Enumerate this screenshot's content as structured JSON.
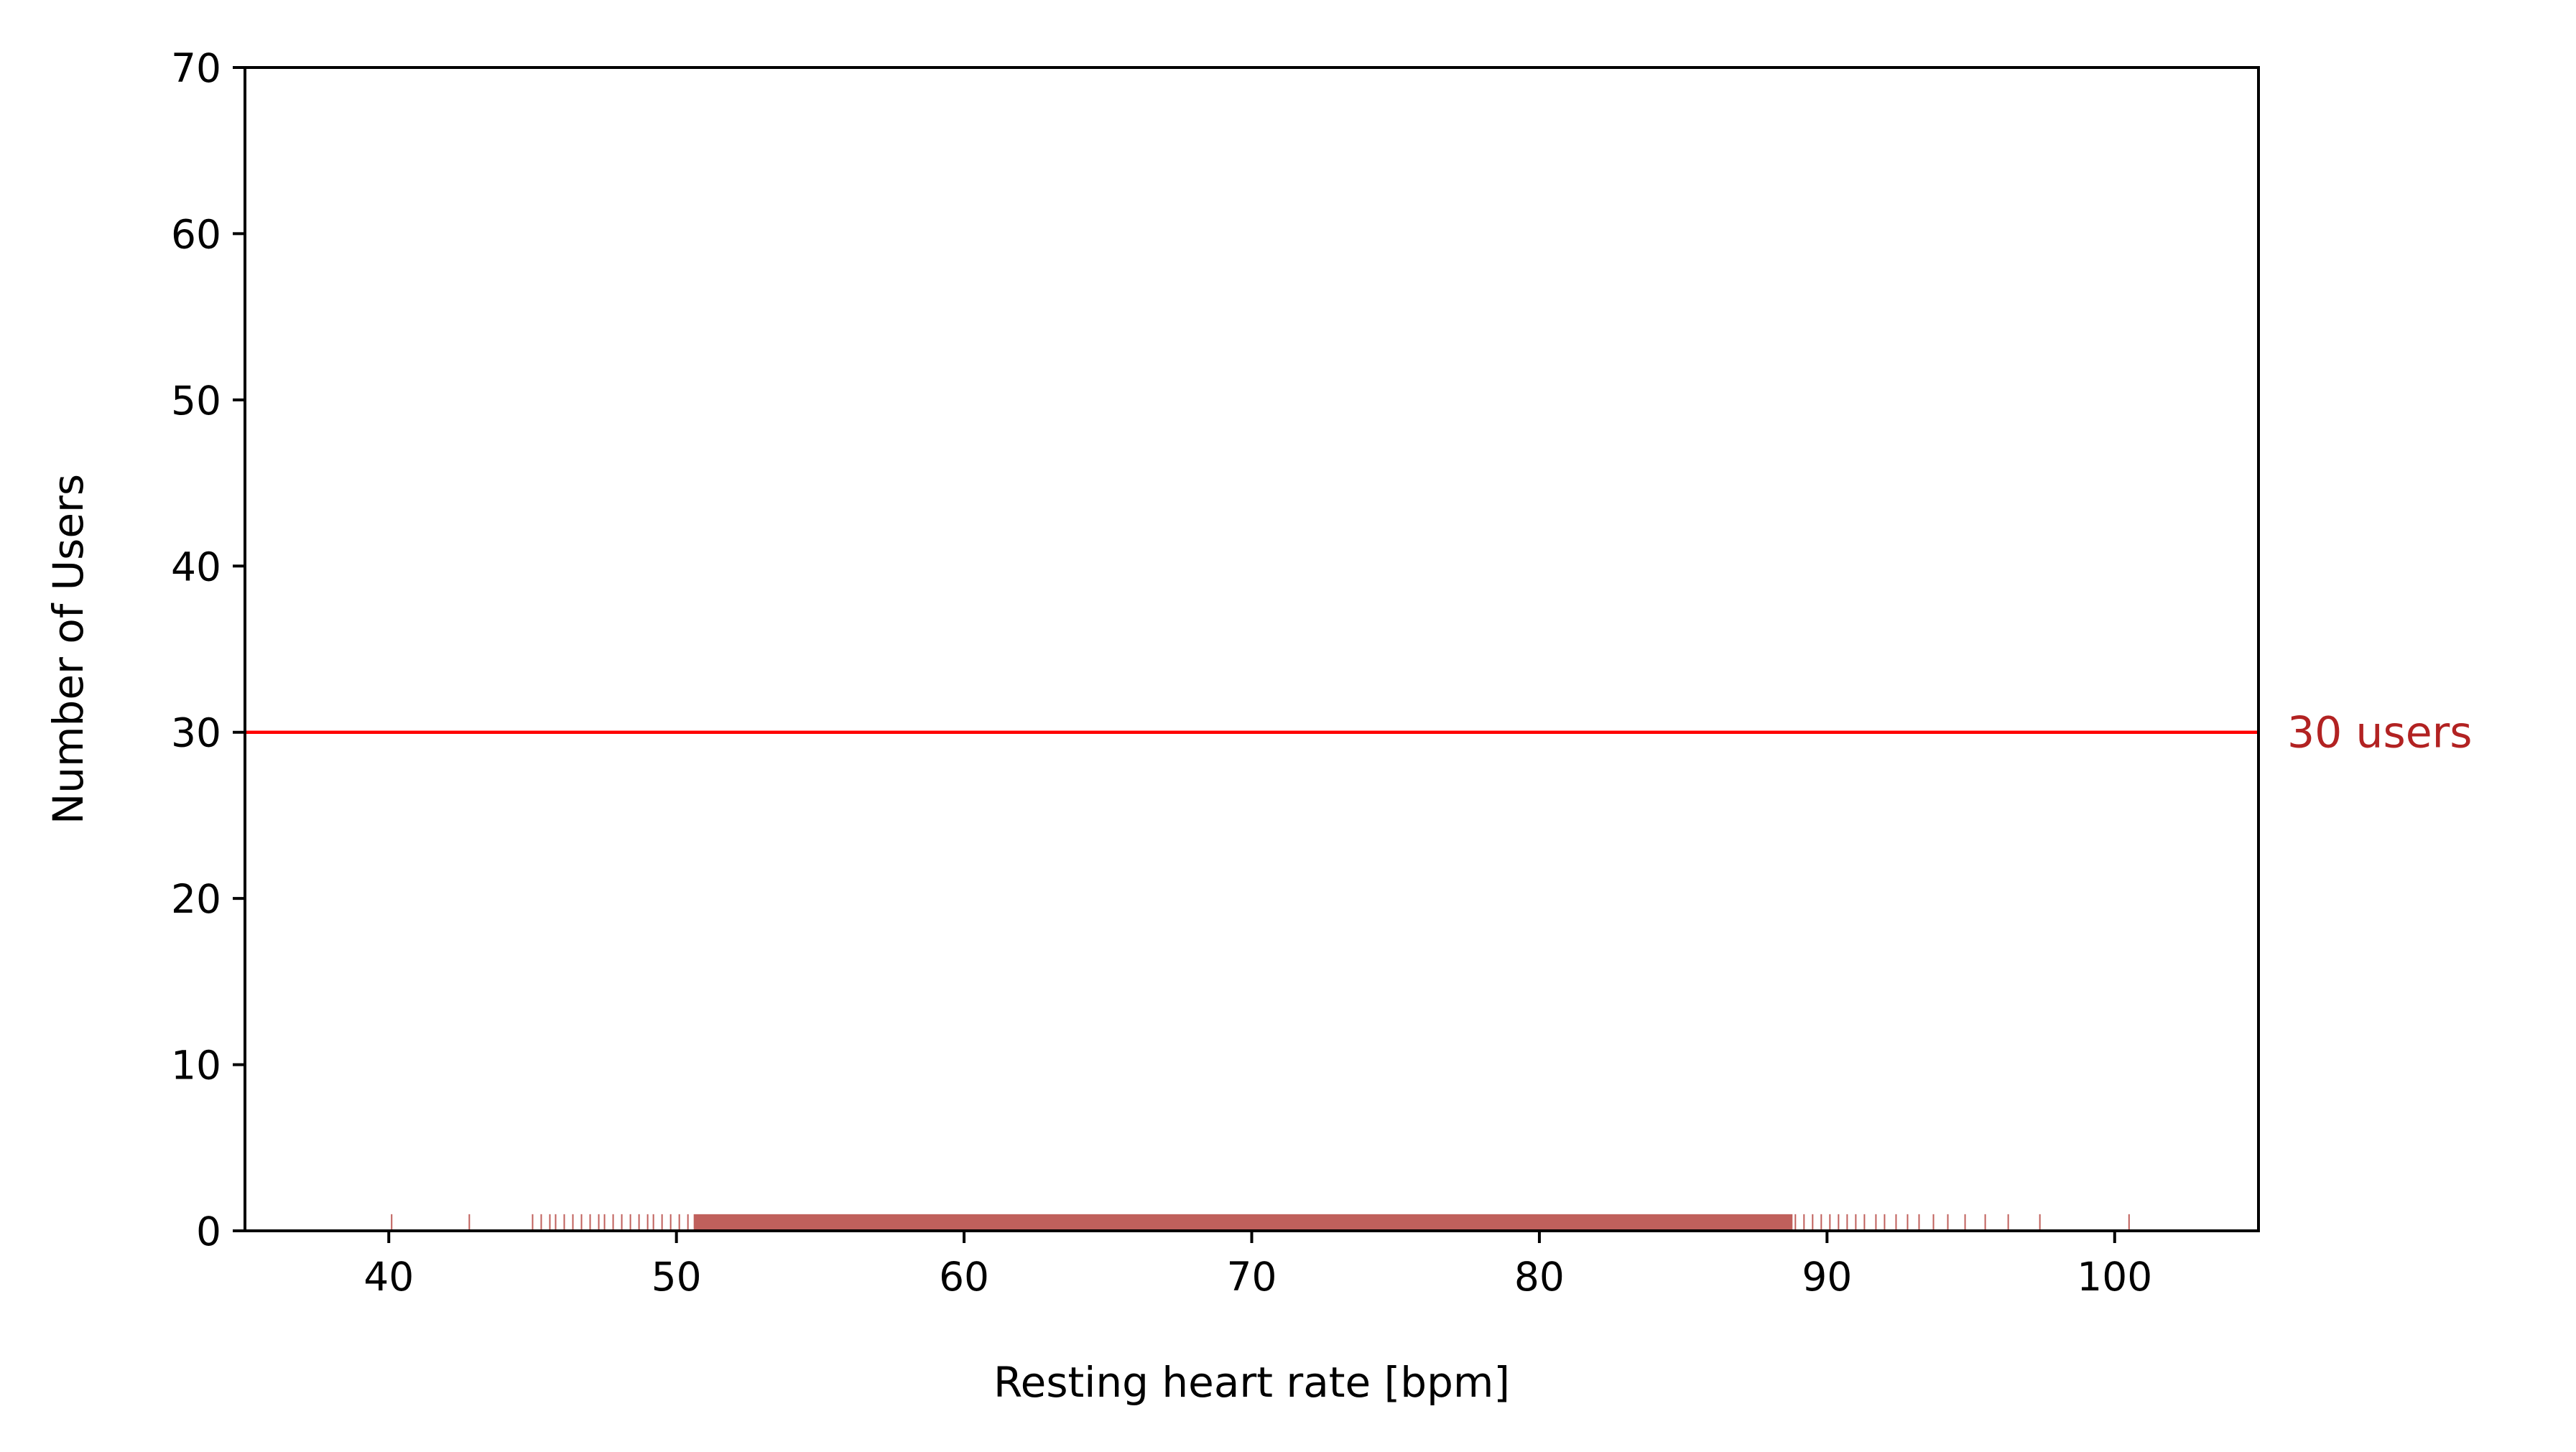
{
  "chart_data": {
    "type": "histogram",
    "xlabel": "Resting heart rate [bpm]",
    "ylabel": "Number of Users",
    "xlim": [
      35,
      105
    ],
    "ylim": [
      0,
      70
    ],
    "x_ticks": [
      "40",
      "50",
      "60",
      "70",
      "80",
      "90",
      "100"
    ],
    "y_ticks": [
      "0",
      "10",
      "20",
      "30",
      "40",
      "50",
      "60",
      "70"
    ],
    "grid": false,
    "legend": "none",
    "colors": {
      "bars": "#c0605c",
      "threshold": "#ff0000",
      "annotation": "#b22222",
      "axes": "#000000"
    },
    "threshold": {
      "y": 30,
      "label": "30 users"
    },
    "series": [
      {
        "bin_width": 0.05,
        "x_range": [
          40,
          100.5
        ],
        "bars": [
          {
            "x": 40.1,
            "count": 1
          },
          {
            "x": 42.8,
            "count": 1
          },
          {
            "x": 45.0,
            "count": 1
          },
          {
            "x": 45.3,
            "count": 1
          },
          {
            "x": 45.6,
            "count": 1
          },
          {
            "x": 45.8,
            "count": 1
          },
          {
            "x": 46.1,
            "count": 1
          },
          {
            "x": 46.4,
            "count": 1
          },
          {
            "x": 46.7,
            "count": 1
          },
          {
            "x": 47.0,
            "count": 1
          },
          {
            "x": 47.3,
            "count": 1
          },
          {
            "x": 47.5,
            "count": 1
          },
          {
            "x": 47.8,
            "count": 1
          },
          {
            "x": 48.1,
            "count": 1
          },
          {
            "x": 48.4,
            "count": 1
          },
          {
            "x": 48.7,
            "count": 1
          },
          {
            "x": 49.0,
            "count": 1
          },
          {
            "x": 49.2,
            "count": 1
          },
          {
            "x": 49.5,
            "count": 1
          },
          {
            "x": 49.8,
            "count": 1
          },
          {
            "x": 50.1,
            "count": 1
          },
          {
            "x": 50.4,
            "count": 1
          },
          {
            "x": 88.9,
            "count": 1
          },
          {
            "x": 89.2,
            "count": 1
          },
          {
            "x": 89.5,
            "count": 1
          },
          {
            "x": 89.8,
            "count": 1
          },
          {
            "x": 90.1,
            "count": 1
          },
          {
            "x": 90.4,
            "count": 1
          },
          {
            "x": 90.7,
            "count": 1
          },
          {
            "x": 91.0,
            "count": 1
          },
          {
            "x": 91.3,
            "count": 1
          },
          {
            "x": 91.7,
            "count": 1
          },
          {
            "x": 92.0,
            "count": 1
          },
          {
            "x": 92.4,
            "count": 1
          },
          {
            "x": 92.8,
            "count": 1
          },
          {
            "x": 93.2,
            "count": 1
          },
          {
            "x": 93.7,
            "count": 1
          },
          {
            "x": 94.2,
            "count": 1
          },
          {
            "x": 94.8,
            "count": 1
          },
          {
            "x": 95.5,
            "count": 1
          },
          {
            "x": 96.3,
            "count": 1
          },
          {
            "x": 97.4,
            "count": 1
          },
          {
            "x": 100.5,
            "count": 1
          }
        ],
        "dense_ranges": [
          {
            "from": 50.6,
            "to": 88.8,
            "count": 1
          }
        ]
      }
    ]
  }
}
